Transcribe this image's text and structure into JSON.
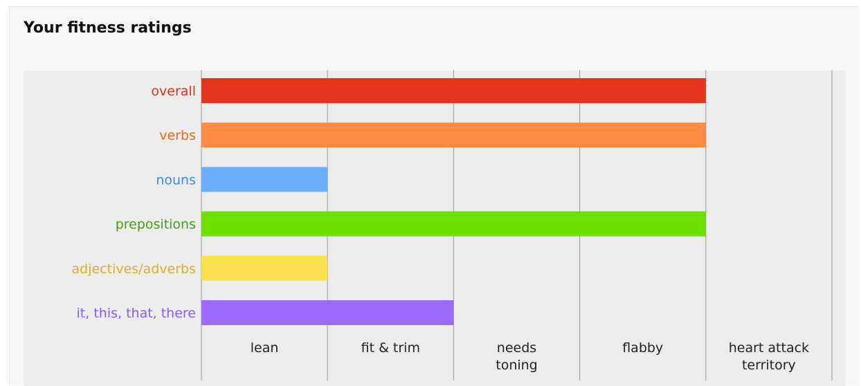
{
  "title": "Your fitness ratings",
  "chart_data": {
    "type": "bar",
    "orientation": "horizontal",
    "title": "Your fitness ratings",
    "categories": [
      "overall",
      "verbs",
      "nouns",
      "prepositions",
      "adjectives/adverbs",
      "it, this, that, there"
    ],
    "values": [
      4,
      4,
      1,
      4,
      1,
      2
    ],
    "colors": [
      "#e5341d",
      "#fe8b42",
      "#6aaefc",
      "#6be000",
      "#fce14f",
      "#9c6afc"
    ],
    "label_colors": [
      "#d7351f",
      "#e76a22",
      "#3c8ce0",
      "#4a9a1b",
      "#d7b32a",
      "#8c5cf0"
    ],
    "x_categories": [
      [
        "lean"
      ],
      [
        "fit & trim"
      ],
      [
        "needs",
        "toning"
      ],
      [
        "flabby"
      ],
      [
        "heart attack",
        "territory"
      ]
    ],
    "xlim": [
      0,
      5
    ],
    "grid": true
  }
}
